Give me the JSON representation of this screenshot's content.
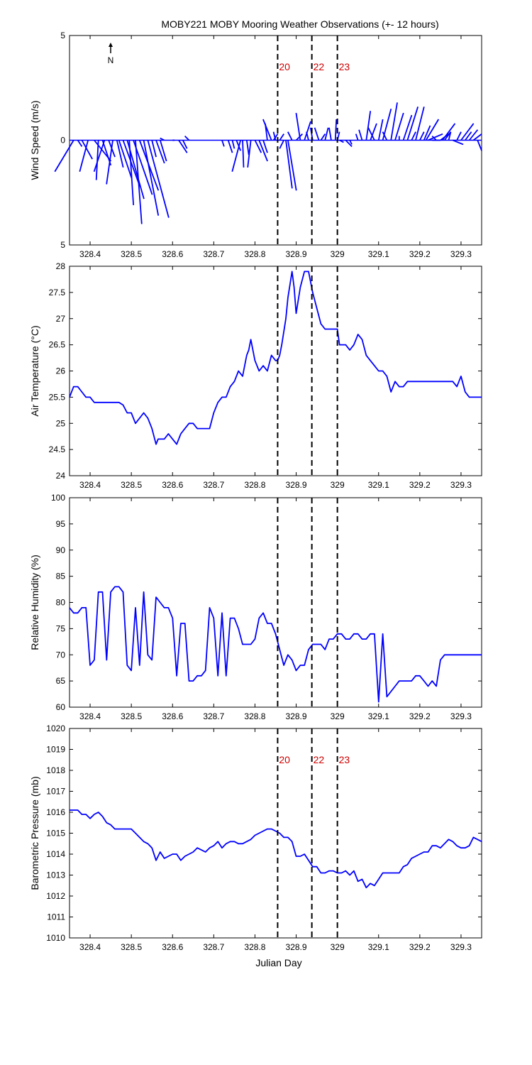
{
  "title": "MOBY221 MOBY Mooring Weather Observations (+- 12 hours)",
  "xlabel": "Julian Day",
  "north_label": "N",
  "colors": {
    "series": "#0000ff",
    "marker_text": "#cc0000",
    "axis": "#000000"
  },
  "chart_data": [
    {
      "type": "line",
      "subtype": "wind-stick",
      "ylabel": "Wind Speed (m/s)",
      "yticks_labels": [
        "5",
        "0",
        "5"
      ],
      "ylim": [
        -5,
        5
      ],
      "xlim": [
        328.35,
        329.35
      ],
      "xticks": [
        "328.4",
        "328.5",
        "328.6",
        "328.7",
        "328.8",
        "328.9",
        "329",
        "329.1",
        "329.2",
        "329.3"
      ],
      "markers": [
        {
          "x": 328.855,
          "label": "20"
        },
        {
          "x": 328.938,
          "label": "22"
        },
        {
          "x": 329.0,
          "label": "23"
        }
      ],
      "sticks": [
        [
          328.36,
          -0.9,
          -1.5
        ],
        [
          328.37,
          0.2,
          -0.3
        ],
        [
          328.38,
          0.5,
          -0.9
        ],
        [
          328.395,
          -0.4,
          -1.5
        ],
        [
          328.41,
          0.8,
          -1.0
        ],
        [
          328.42,
          -0.1,
          -1.9
        ],
        [
          328.43,
          0.4,
          -1.2
        ],
        [
          328.435,
          -0.5,
          -1.5
        ],
        [
          328.445,
          0.3,
          -0.8
        ],
        [
          328.455,
          -0.3,
          -2.1
        ],
        [
          328.465,
          0.3,
          -1.3
        ],
        [
          328.47,
          0.6,
          -1.8
        ],
        [
          328.48,
          0.8,
          -2.2
        ],
        [
          328.49,
          0.8,
          -2.8
        ],
        [
          328.495,
          0.2,
          -3.1
        ],
        [
          328.505,
          0.9,
          -2.6
        ],
        [
          328.51,
          0.3,
          -4.0
        ],
        [
          328.52,
          0.9,
          -2.4
        ],
        [
          328.53,
          0.7,
          -3.6
        ],
        [
          328.54,
          1.0,
          -3.7
        ],
        [
          328.55,
          0.2,
          -0.8
        ],
        [
          328.56,
          0.4,
          -1.1
        ],
        [
          328.57,
          0.3,
          -1.0
        ],
        [
          328.58,
          -0.2,
          0.1
        ],
        [
          328.6,
          0.1,
          0.0
        ],
        [
          328.615,
          0.4,
          -0.6
        ],
        [
          328.625,
          0.2,
          -0.4
        ],
        [
          328.64,
          -0.2,
          0.2
        ],
        [
          328.66,
          0.0,
          0.0
        ],
        [
          328.72,
          0.1,
          -0.3
        ],
        [
          328.735,
          0.2,
          -0.6
        ],
        [
          328.745,
          0.1,
          -0.4
        ],
        [
          328.755,
          0.2,
          -0.5
        ],
        [
          328.765,
          -0.4,
          -1.5
        ],
        [
          328.77,
          0.05,
          -1.3
        ],
        [
          328.78,
          0.1,
          -0.7
        ],
        [
          328.79,
          -0.15,
          -1.3
        ],
        [
          328.8,
          0.3,
          -0.6
        ],
        [
          328.81,
          0.4,
          -1.0
        ],
        [
          328.82,
          0.2,
          -0.6
        ],
        [
          328.83,
          -0.1,
          0.8
        ],
        [
          328.84,
          -0.4,
          1.0
        ],
        [
          328.845,
          0.2,
          0.3
        ],
        [
          328.85,
          -0.1,
          0.4
        ],
        [
          328.86,
          0.2,
          0.3
        ],
        [
          328.87,
          -0.2,
          -0.4
        ],
        [
          328.875,
          0.3,
          -2.3
        ],
        [
          328.88,
          0.4,
          -2.4
        ],
        [
          328.89,
          -0.2,
          0.4
        ],
        [
          328.9,
          0.3,
          0.3
        ],
        [
          328.91,
          -0.2,
          1.3
        ],
        [
          328.92,
          0.3,
          0.9
        ],
        [
          328.93,
          -0.1,
          0.4
        ],
        [
          328.94,
          -0.1,
          0.6
        ],
        [
          328.955,
          -0.2,
          0.6
        ],
        [
          328.96,
          0.2,
          0.3
        ],
        [
          328.97,
          0.15,
          0.6
        ],
        [
          328.985,
          -0.1,
          0.6
        ],
        [
          328.995,
          0.05,
          1.0
        ],
        [
          329.0,
          0.1,
          0.4
        ],
        [
          329.005,
          0.2,
          -0.1
        ],
        [
          329.02,
          0.3,
          -0.3
        ],
        [
          329.03,
          0.1,
          -0.2
        ],
        [
          329.05,
          -0.1,
          0.3
        ],
        [
          329.06,
          -0.15,
          0.5
        ],
        [
          329.07,
          0.2,
          1.4
        ],
        [
          329.08,
          0.3,
          0.8
        ],
        [
          329.09,
          -0.3,
          0.6
        ],
        [
          329.1,
          0.2,
          1.0
        ],
        [
          329.11,
          0.4,
          1.5
        ],
        [
          329.12,
          -0.2,
          0.4
        ],
        [
          329.13,
          0.3,
          1.8
        ],
        [
          329.14,
          0.4,
          1.3
        ],
        [
          329.15,
          0.0,
          0.2
        ],
        [
          329.16,
          0.4,
          1.2
        ],
        [
          329.17,
          0.5,
          1.6
        ],
        [
          329.18,
          0.2,
          0.4
        ],
        [
          329.19,
          0.4,
          1.6
        ],
        [
          329.2,
          0.2,
          0.4
        ],
        [
          329.21,
          0.3,
          0.7
        ],
        [
          329.215,
          0.6,
          1.0
        ],
        [
          329.22,
          0.7,
          0.3
        ],
        [
          329.23,
          0.4,
          0.0
        ],
        [
          329.24,
          -0.2,
          0.2
        ],
        [
          329.25,
          0.4,
          0.3
        ],
        [
          329.255,
          0.6,
          0.8
        ],
        [
          329.26,
          0.3,
          0.4
        ],
        [
          329.27,
          0.1,
          0.4
        ],
        [
          329.28,
          0.5,
          -0.2
        ],
        [
          329.29,
          0.2,
          0.4
        ],
        [
          329.3,
          0.6,
          0.8
        ],
        [
          329.31,
          0.3,
          0.4
        ],
        [
          329.32,
          0.4,
          0.5
        ],
        [
          329.33,
          0.4,
          0.3
        ],
        [
          329.34,
          0.2,
          -0.5
        ]
      ]
    },
    {
      "type": "line",
      "ylabel": "Air Temperature (°C)",
      "ylim": [
        24,
        28
      ],
      "yticks": [
        "24",
        "24.5",
        "25",
        "25.5",
        "26",
        "26.5",
        "27",
        "27.5",
        "28"
      ],
      "xlim": [
        328.35,
        329.35
      ],
      "xticks": [
        "328.4",
        "328.5",
        "328.6",
        "328.7",
        "328.8",
        "328.9",
        "329",
        "329.1",
        "329.2",
        "329.3"
      ],
      "markers": [
        {
          "x": 328.855
        },
        {
          "x": 328.938
        },
        {
          "x": 329.0
        }
      ],
      "x": [
        328.35,
        328.36,
        328.37,
        328.38,
        328.39,
        328.4,
        328.41,
        328.42,
        328.43,
        328.44,
        328.45,
        328.46,
        328.47,
        328.48,
        328.49,
        328.5,
        328.51,
        328.52,
        328.53,
        328.54,
        328.55,
        328.56,
        328.565,
        328.57,
        328.58,
        328.59,
        328.6,
        328.61,
        328.62,
        328.63,
        328.64,
        328.65,
        328.66,
        328.67,
        328.68,
        328.69,
        328.7,
        328.71,
        328.72,
        328.73,
        328.74,
        328.75,
        328.76,
        328.77,
        328.78,
        328.785,
        328.79,
        328.8,
        328.81,
        328.82,
        328.83,
        328.84,
        328.85,
        328.855,
        328.86,
        328.865,
        328.875,
        328.88,
        328.89,
        328.895,
        328.9,
        328.91,
        328.92,
        328.93,
        328.94,
        328.95,
        328.96,
        328.97,
        328.98,
        328.99,
        329.0,
        329.005,
        329.01,
        329.02,
        329.03,
        329.04,
        329.05,
        329.06,
        329.07,
        329.08,
        329.09,
        329.1,
        329.11,
        329.12,
        329.13,
        329.14,
        329.15,
        329.16,
        329.17,
        329.18,
        329.19,
        329.2,
        329.21,
        329.22,
        329.23,
        329.24,
        329.25,
        329.26,
        329.27,
        329.28,
        329.29,
        329.3,
        329.31,
        329.32,
        329.33,
        329.34,
        329.35
      ],
      "y": [
        25.5,
        25.7,
        25.7,
        25.6,
        25.5,
        25.5,
        25.4,
        25.4,
        25.4,
        25.4,
        25.4,
        25.4,
        25.4,
        25.35,
        25.2,
        25.2,
        25.0,
        25.1,
        25.2,
        25.1,
        24.9,
        24.6,
        24.7,
        24.7,
        24.7,
        24.8,
        24.7,
        24.6,
        24.8,
        24.9,
        25.0,
        25.0,
        24.9,
        24.9,
        24.9,
        24.9,
        25.2,
        25.4,
        25.5,
        25.5,
        25.7,
        25.8,
        26.0,
        25.9,
        26.3,
        26.4,
        26.6,
        26.2,
        26.0,
        26.1,
        26.0,
        26.3,
        26.2,
        26.2,
        26.3,
        26.5,
        27.0,
        27.4,
        27.9,
        27.6,
        27.1,
        27.6,
        27.9,
        27.9,
        27.5,
        27.2,
        26.9,
        26.8,
        26.8,
        26.8,
        26.8,
        26.5,
        26.5,
        26.5,
        26.4,
        26.5,
        26.7,
        26.6,
        26.3,
        26.2,
        26.1,
        26.0,
        26.0,
        25.9,
        25.6,
        25.8,
        25.7,
        25.7,
        25.8,
        25.8,
        25.8,
        25.8,
        25.8,
        25.8,
        25.8,
        25.8,
        25.8,
        25.8,
        25.8,
        25.8,
        25.7,
        25.9,
        25.6,
        25.5,
        25.5,
        25.5,
        25.5
      ]
    },
    {
      "type": "line",
      "ylabel": "Relative Humidity (%)",
      "ylim": [
        60,
        100
      ],
      "yticks": [
        "60",
        "65",
        "70",
        "75",
        "80",
        "85",
        "90",
        "95",
        "100"
      ],
      "xlim": [
        328.35,
        329.35
      ],
      "xticks": [
        "328.4",
        "328.5",
        "328.6",
        "328.7",
        "328.8",
        "328.9",
        "329",
        "329.1",
        "329.2",
        "329.3"
      ],
      "markers": [
        {
          "x": 328.855
        },
        {
          "x": 328.938
        },
        {
          "x": 329.0
        }
      ],
      "x": [
        328.35,
        328.36,
        328.37,
        328.38,
        328.39,
        328.4,
        328.41,
        328.42,
        328.43,
        328.44,
        328.45,
        328.46,
        328.47,
        328.48,
        328.49,
        328.5,
        328.51,
        328.52,
        328.53,
        328.54,
        328.55,
        328.56,
        328.57,
        328.58,
        328.59,
        328.6,
        328.61,
        328.62,
        328.63,
        328.64,
        328.65,
        328.66,
        328.67,
        328.68,
        328.69,
        328.7,
        328.71,
        328.72,
        328.73,
        328.74,
        328.75,
        328.76,
        328.77,
        328.78,
        328.79,
        328.8,
        328.81,
        328.82,
        328.83,
        328.84,
        328.85,
        328.86,
        328.87,
        328.88,
        328.89,
        328.9,
        328.91,
        328.92,
        328.93,
        328.94,
        328.95,
        328.96,
        328.97,
        328.98,
        328.99,
        329.0,
        329.01,
        329.02,
        329.03,
        329.04,
        329.05,
        329.06,
        329.07,
        329.08,
        329.09,
        329.1,
        329.11,
        329.12,
        329.13,
        329.14,
        329.15,
        329.16,
        329.17,
        329.18,
        329.19,
        329.2,
        329.21,
        329.22,
        329.23,
        329.24,
        329.25,
        329.26,
        329.27,
        329.28,
        329.29,
        329.3,
        329.31,
        329.32,
        329.33,
        329.34,
        329.35
      ],
      "y": [
        79,
        78,
        78,
        79,
        79,
        68,
        69,
        82,
        82,
        69,
        82,
        83,
        83,
        82,
        68,
        67,
        79,
        68,
        82,
        70,
        69,
        81,
        80,
        79,
        79,
        77,
        66,
        76,
        76,
        65,
        65,
        66,
        66,
        67,
        79,
        77,
        66,
        78,
        66,
        77,
        77,
        75,
        72,
        72,
        72,
        73,
        77,
        78,
        76,
        76,
        74,
        71,
        68,
        70,
        69,
        67,
        68,
        68,
        71,
        72,
        72,
        72,
        71,
        73,
        73,
        74,
        74,
        73,
        73,
        74,
        74,
        73,
        73,
        74,
        74,
        61,
        74,
        62,
        63,
        64,
        65,
        65,
        65,
        65,
        66,
        66,
        65,
        64,
        65,
        64,
        69,
        70,
        70,
        70,
        70,
        70,
        70,
        70,
        70,
        70,
        70
      ]
    },
    {
      "type": "line",
      "ylabel": "Barometric Pressure (mb)",
      "ylim": [
        1010,
        1020
      ],
      "yticks": [
        "1010",
        "1011",
        "1012",
        "1013",
        "1014",
        "1015",
        "1016",
        "1017",
        "1018",
        "1019",
        "1020"
      ],
      "xlabel": "Julian Day",
      "xlim": [
        328.35,
        329.35
      ],
      "xticks": [
        "328.4",
        "328.5",
        "328.6",
        "328.7",
        "328.8",
        "328.9",
        "329",
        "329.1",
        "329.2",
        "329.3"
      ],
      "markers": [
        {
          "x": 328.855,
          "label": "20"
        },
        {
          "x": 328.938,
          "label": "22"
        },
        {
          "x": 329.0,
          "label": "23"
        }
      ],
      "x": [
        328.35,
        328.36,
        328.37,
        328.38,
        328.39,
        328.4,
        328.41,
        328.42,
        328.43,
        328.44,
        328.45,
        328.46,
        328.47,
        328.48,
        328.49,
        328.5,
        328.51,
        328.52,
        328.53,
        328.54,
        328.55,
        328.56,
        328.57,
        328.58,
        328.59,
        328.6,
        328.61,
        328.62,
        328.63,
        328.64,
        328.65,
        328.66,
        328.67,
        328.68,
        328.69,
        328.7,
        328.71,
        328.72,
        328.73,
        328.74,
        328.75,
        328.76,
        328.77,
        328.78,
        328.79,
        328.8,
        328.81,
        328.82,
        328.83,
        328.84,
        328.85,
        328.86,
        328.87,
        328.88,
        328.89,
        328.9,
        328.91,
        328.92,
        328.93,
        328.94,
        328.95,
        328.96,
        328.97,
        328.98,
        328.99,
        329.0,
        329.01,
        329.02,
        329.03,
        329.04,
        329.05,
        329.06,
        329.07,
        329.08,
        329.09,
        329.1,
        329.11,
        329.12,
        329.13,
        329.14,
        329.15,
        329.16,
        329.17,
        329.18,
        329.19,
        329.2,
        329.21,
        329.22,
        329.23,
        329.24,
        329.25,
        329.26,
        329.27,
        329.28,
        329.29,
        329.3,
        329.31,
        329.32,
        329.33,
        329.34,
        329.35
      ],
      "y": [
        1016.1,
        1016.1,
        1016.1,
        1015.9,
        1015.9,
        1015.7,
        1015.9,
        1016.0,
        1015.8,
        1015.5,
        1015.4,
        1015.2,
        1015.2,
        1015.2,
        1015.2,
        1015.2,
        1015.0,
        1014.8,
        1014.6,
        1014.5,
        1014.3,
        1013.7,
        1014.1,
        1013.8,
        1013.9,
        1014.0,
        1014.0,
        1013.7,
        1013.9,
        1014.0,
        1014.1,
        1014.3,
        1014.2,
        1014.1,
        1014.3,
        1014.4,
        1014.6,
        1014.3,
        1014.5,
        1014.6,
        1014.6,
        1014.5,
        1014.5,
        1014.6,
        1014.7,
        1014.9,
        1015.0,
        1015.1,
        1015.2,
        1015.2,
        1015.1,
        1015.0,
        1014.8,
        1014.8,
        1014.6,
        1013.9,
        1013.9,
        1014.0,
        1013.7,
        1013.4,
        1013.4,
        1013.1,
        1013.1,
        1013.2,
        1013.2,
        1013.1,
        1013.1,
        1013.2,
        1013.0,
        1013.2,
        1012.7,
        1012.8,
        1012.4,
        1012.6,
        1012.5,
        1012.8,
        1013.1,
        1013.1,
        1013.1,
        1013.1,
        1013.1,
        1013.4,
        1013.5,
        1013.8,
        1013.9,
        1014.0,
        1014.1,
        1014.1,
        1014.4,
        1014.4,
        1014.3,
        1014.5,
        1014.7,
        1014.6,
        1014.4,
        1014.3,
        1014.3,
        1014.4,
        1014.8,
        1014.7,
        1014.6
      ]
    }
  ]
}
